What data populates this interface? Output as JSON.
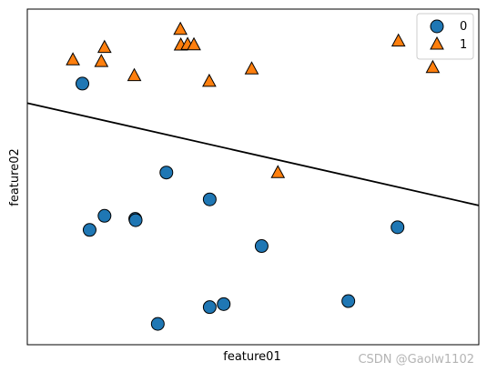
{
  "chart_data": {
    "type": "scatter",
    "xlabel": "feature01",
    "ylabel": "feature02",
    "xlim": [
      0,
      100
    ],
    "ylim": [
      0,
      100
    ],
    "grid": false,
    "legend_position": "top-right",
    "series": [
      {
        "name": "0",
        "marker": "circle",
        "color": "#1f77b4",
        "points": [
          [
            12.2,
            77.8
          ],
          [
            30.8,
            51.3
          ],
          [
            17.1,
            38.4
          ],
          [
            23.9,
            37.5
          ],
          [
            24.0,
            37.1
          ],
          [
            13.8,
            34.2
          ],
          [
            40.4,
            43.3
          ],
          [
            51.9,
            29.4
          ],
          [
            82.0,
            35.0
          ],
          [
            71.1,
            13.0
          ],
          [
            43.5,
            12.1
          ],
          [
            40.4,
            11.2
          ],
          [
            28.9,
            6.2
          ]
        ]
      },
      {
        "name": "1",
        "marker": "triangle",
        "color": "#ff7f0e",
        "points": [
          [
            10.1,
            85.0
          ],
          [
            17.1,
            88.7
          ],
          [
            16.4,
            84.5
          ],
          [
            23.7,
            80.3
          ],
          [
            33.9,
            94.1
          ],
          [
            34.0,
            89.4
          ],
          [
            35.5,
            89.6
          ],
          [
            36.9,
            89.5
          ],
          [
            40.3,
            78.6
          ],
          [
            49.7,
            82.3
          ],
          [
            82.2,
            90.6
          ],
          [
            89.8,
            82.7
          ],
          [
            55.5,
            51.4
          ]
        ]
      }
    ],
    "decision_line": {
      "x": [
        0,
        100
      ],
      "y": [
        72.0,
        41.5
      ]
    },
    "legend": {
      "entries": [
        "0",
        "1"
      ]
    }
  },
  "watermark": "CSDN @Gaolw1102"
}
